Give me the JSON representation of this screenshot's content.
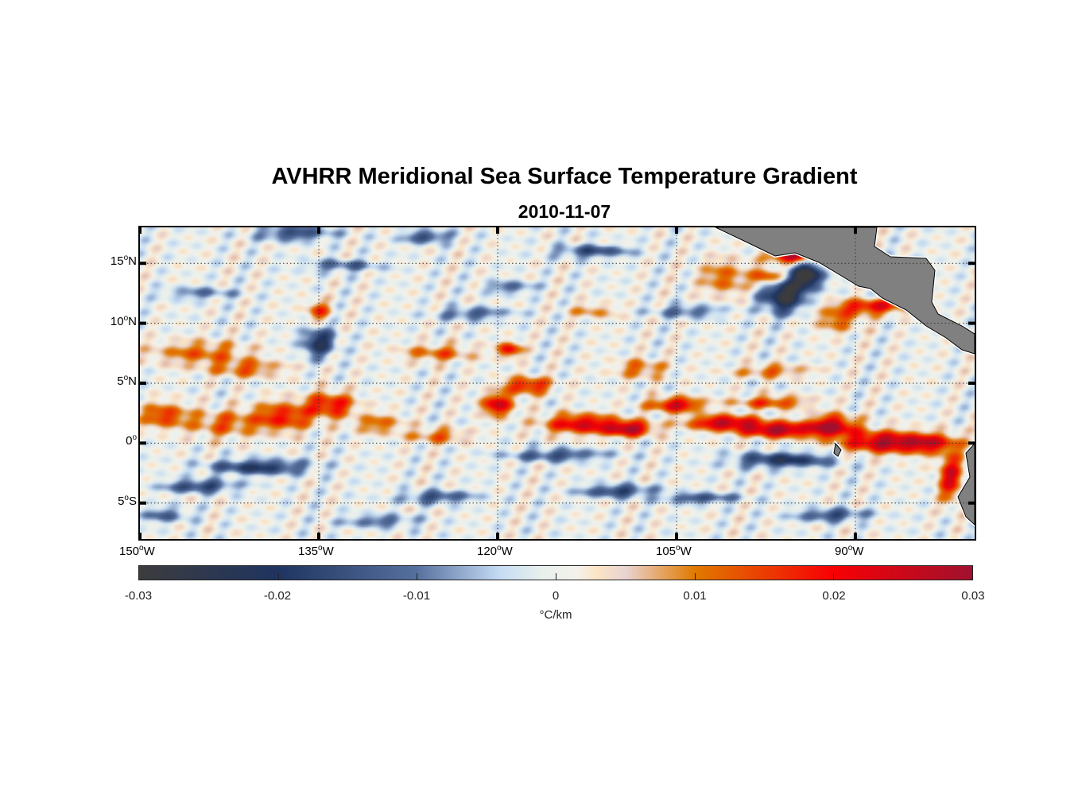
{
  "title": "AVHRR Meridional Sea Surface Temperature Gradient",
  "subtitle": "2010-11-07",
  "chart_data": {
    "type": "heatmap",
    "title": "AVHRR Meridional Sea Surface Temperature Gradient",
    "subtitle": "2010-11-07",
    "x_ticks": [
      {
        "value": -150,
        "label": "150",
        "suffix": "W"
      },
      {
        "value": -135,
        "label": "135",
        "suffix": "W"
      },
      {
        "value": -120,
        "label": "120",
        "suffix": "W"
      },
      {
        "value": -105,
        "label": "105",
        "suffix": "W"
      },
      {
        "value": -90,
        "label": "90",
        "suffix": "W"
      }
    ],
    "y_ticks": [
      {
        "value": 15,
        "label": "15",
        "suffix": "N"
      },
      {
        "value": 10,
        "label": "10",
        "suffix": "N"
      },
      {
        "value": 5,
        "label": "5",
        "suffix": "N"
      },
      {
        "value": 0,
        "label": "0",
        "suffix": ""
      },
      {
        "value": -5,
        "label": "5",
        "suffix": "S"
      }
    ],
    "xlim": [
      -150,
      -80
    ],
    "ylim": [
      -8,
      18
    ],
    "grid": "dotted",
    "colorbar": {
      "label": "°C/km",
      "range": [
        -0.03,
        0.03
      ],
      "ticks": [
        "-0.03",
        "-0.02",
        "-0.01",
        "0",
        "0.01",
        "0.02",
        "0.03"
      ],
      "colors": [
        [
          -0.03,
          "#3c3c3e"
        ],
        [
          -0.02,
          "#1f3460"
        ],
        [
          -0.01,
          "#56709e"
        ],
        [
          -0.004,
          "#c6dcf4"
        ],
        [
          -0.001,
          "#e8f0ec"
        ],
        [
          0.0015,
          "#f4f1ec"
        ],
        [
          0.003,
          "#fbe4c4"
        ],
        [
          0.005,
          "#e9d4d2"
        ],
        [
          0.01,
          "#e07a00"
        ],
        [
          0.02,
          "#f70004"
        ],
        [
          0.03,
          "#a0112e"
        ]
      ]
    },
    "land_color": "#808080",
    "features": [
      [
        -148,
        2.3,
        0.016,
        2,
        1
      ],
      [
        -143,
        1.6,
        0.012,
        3,
        1.1
      ],
      [
        -138,
        2.2,
        0.018,
        2.5,
        1.2
      ],
      [
        -134,
        3.2,
        0.02,
        2,
        1
      ],
      [
        -130,
        1.6,
        0.012,
        2,
        0.8
      ],
      [
        -125,
        0.6,
        0.012,
        2.5,
        0.6
      ],
      [
        -120,
        3.2,
        0.024,
        1.3,
        0.9
      ],
      [
        -117.5,
        4.8,
        0.02,
        2,
        0.7
      ],
      [
        -113,
        1.6,
        0.024,
        3,
        0.8
      ],
      [
        -109,
        1.2,
        0.027,
        2,
        0.6
      ],
      [
        -105,
        3.2,
        0.024,
        2.2,
        0.6
      ],
      [
        -101,
        1.7,
        0.027,
        3,
        0.6
      ],
      [
        -96.5,
        1.1,
        0.029,
        3,
        0.6
      ],
      [
        -92,
        1.4,
        0.028,
        2,
        0.9
      ],
      [
        -88,
        0.1,
        0.026,
        3,
        0.9
      ],
      [
        -84,
        0,
        0.023,
        2.5,
        0.8
      ],
      [
        -82,
        -2.8,
        0.022,
        1,
        2
      ],
      [
        -97,
        3.4,
        0.016,
        3,
        0.5
      ],
      [
        -145,
        7.5,
        0.012,
        4,
        1
      ],
      [
        -141,
        6.2,
        0.012,
        3,
        0.7
      ],
      [
        -125,
        7.5,
        0.012,
        3,
        0.7
      ],
      [
        -119,
        7.8,
        0.021,
        1,
        0.6
      ],
      [
        -108,
        6.2,
        0.012,
        2,
        0.8
      ],
      [
        -97,
        6,
        0.012,
        3,
        0.5
      ],
      [
        -135,
        11,
        0.015,
        1,
        0.8
      ],
      [
        -112,
        11,
        0.009,
        2,
        0.6
      ],
      [
        -96,
        12.5,
        -0.031,
        1.8,
        1.5
      ],
      [
        -94,
        14,
        -0.031,
        1.2,
        1
      ],
      [
        -97.2,
        13.8,
        0.023,
        1.3,
        0.8
      ],
      [
        -95.2,
        15.6,
        0.029,
        2,
        0.5
      ],
      [
        -101,
        13.8,
        0.012,
        2,
        1.5
      ],
      [
        -88.5,
        11.4,
        0.021,
        3,
        0.6
      ],
      [
        -91.5,
        10.3,
        0.012,
        2,
        1
      ],
      [
        -135,
        8.4,
        -0.021,
        1.4,
        1.2
      ],
      [
        -137,
        17.5,
        -0.016,
        3,
        0.6
      ],
      [
        -126,
        17.2,
        -0.016,
        2,
        0.5
      ],
      [
        -133,
        14.8,
        -0.012,
        3,
        0.5
      ],
      [
        -122,
        10.8,
        -0.013,
        3,
        0.5
      ],
      [
        -140,
        -2,
        -0.02,
        4,
        0.6
      ],
      [
        -145,
        -3.6,
        -0.018,
        3,
        0.5
      ],
      [
        -125,
        -4.5,
        -0.015,
        3,
        0.5
      ],
      [
        -110,
        -4,
        -0.018,
        3,
        0.5
      ],
      [
        -96,
        -1.4,
        -0.021,
        4,
        0.6
      ],
      [
        -103,
        -4.6,
        -0.016,
        3,
        0.4
      ],
      [
        -115,
        -1,
        -0.015,
        4,
        0.5
      ],
      [
        -148,
        -6,
        -0.012,
        2,
        0.6
      ],
      [
        -92,
        -6,
        -0.016,
        3,
        0.5
      ],
      [
        -104,
        11,
        -0.012,
        3,
        0.5
      ],
      [
        -119,
        13,
        -0.012,
        2,
        0.5
      ],
      [
        -112,
        16,
        -0.016,
        3,
        0.5
      ],
      [
        -145,
        12.5,
        -0.01,
        3,
        0.5
      ],
      [
        -130,
        -6.5,
        -0.012,
        3,
        0.5
      ]
    ]
  }
}
